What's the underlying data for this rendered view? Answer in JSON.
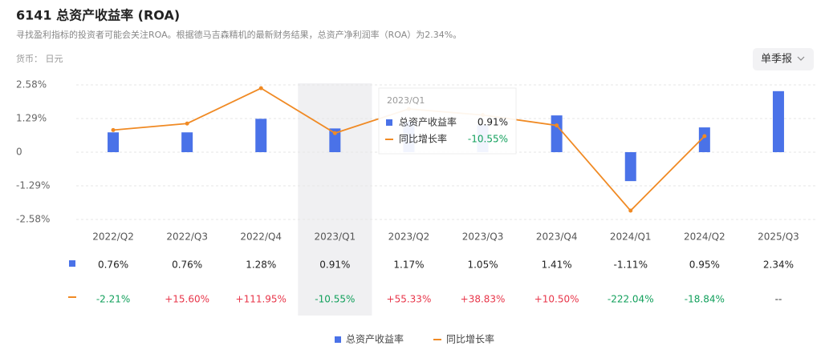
{
  "header": {
    "title": "6141 总资产收益率 (ROA)",
    "subtitle": "寻找盈利指标的投资者可能会关注ROA。根据德马吉森精机的最新财务结果，总资产净利润率（ROA）为2.34%。",
    "currency": "货币： 日元",
    "period_button": "单季报"
  },
  "chart_data": {
    "type": "bar_line",
    "categories": [
      "2022/Q2",
      "2022/Q3",
      "2022/Q4",
      "2023/Q1",
      "2023/Q2",
      "2023/Q3",
      "2023/Q4",
      "2024/Q1",
      "2024/Q2",
      "2025/Q3"
    ],
    "series": [
      {
        "name": "总资产收益率",
        "type": "bar",
        "color": "#4a72e8",
        "values": [
          0.76,
          0.76,
          1.28,
          0.91,
          1.17,
          1.05,
          1.41,
          -1.11,
          0.95,
          2.34
        ],
        "value_labels": [
          "0.76%",
          "0.76%",
          "1.28%",
          "0.91%",
          "1.17%",
          "1.05%",
          "1.41%",
          "-1.11%",
          "0.95%",
          "2.34%"
        ]
      },
      {
        "name": "同比增长率",
        "type": "line",
        "axis": "y2",
        "color": "#f08a24",
        "values": [
          -2.21,
          15.6,
          111.95,
          -10.55,
          55.33,
          38.83,
          10.5,
          -222.04,
          -18.84,
          null
        ],
        "value_labels": [
          "-2.21%",
          "+15.60%",
          "+111.95%",
          "-10.55%",
          "+55.33%",
          "+38.83%",
          "+10.50%",
          "-222.04%",
          "-18.84%",
          "--"
        ]
      }
    ],
    "ylim": [
      -2.58,
      2.58
    ],
    "yticks": [
      {
        "value": 2.58,
        "label": "2.58%"
      },
      {
        "value": 1.29,
        "label": "1.29%"
      },
      0,
      {
        "value": -1.29,
        "label": "-1.29%"
      },
      {
        "value": -2.58,
        "label": "-2.58%"
      }
    ],
    "y2lim": [
      -246,
      121
    ],
    "grid": true,
    "highlight": "2023/Q1",
    "tooltip": {
      "title": "2023/Q1",
      "rows": [
        [
          "总资产收益率",
          "0.91%"
        ],
        [
          "同比增长率",
          "-10.55%"
        ]
      ]
    }
  }
}
